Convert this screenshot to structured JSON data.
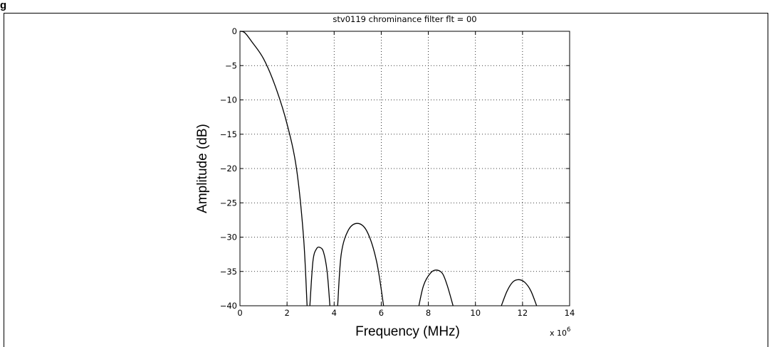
{
  "figure": {
    "label": "g"
  },
  "chart_data": {
    "type": "line",
    "title": "stv0119 chrominance filter flt = 00",
    "xlabel": "Frequency (MHz)",
    "ylabel": "Amplitude (dB)",
    "x_multiplier_prefix": "x 10",
    "x_multiplier_exponent": "6",
    "xlim": [
      0,
      14
    ],
    "ylim": [
      -40,
      0
    ],
    "xticks": [
      0,
      2,
      4,
      6,
      8,
      10,
      12,
      14
    ],
    "xtick_labels": [
      "0",
      "2",
      "4",
      "6",
      "8",
      "10",
      "12",
      "14"
    ],
    "yticks": [
      0,
      -5,
      -10,
      -15,
      -20,
      -25,
      -30,
      -35,
      -40
    ],
    "ytick_labels": [
      "0",
      "−5",
      "−10",
      "−15",
      "−20",
      "−25",
      "−30",
      "−35",
      "−40"
    ],
    "grid": true,
    "line_color": "#000000",
    "segments": [
      {
        "x": [
          0,
          0.2,
          0.5,
          1.0,
          1.5,
          2.0,
          2.4,
          2.7,
          2.85
        ],
        "y": [
          0,
          -0.2,
          -1.5,
          -4.0,
          -8.0,
          -13.5,
          -20.0,
          -30.0,
          -40.0
        ]
      },
      {
        "x": [
          2.97,
          3.1,
          3.25,
          3.4,
          3.55,
          3.7,
          3.82
        ],
        "y": [
          -40.0,
          -33.5,
          -31.7,
          -31.5,
          -32.2,
          -35.0,
          -40.0
        ]
      },
      {
        "x": [
          4.15,
          4.3,
          4.6,
          5.0,
          5.4,
          5.8,
          6.1
        ],
        "y": [
          -40.0,
          -32.5,
          -29.0,
          -28.0,
          -29.2,
          -33.5,
          -40.0
        ]
      },
      {
        "x": [
          7.6,
          7.8,
          8.1,
          8.35,
          8.6,
          8.8,
          9.05
        ],
        "y": [
          -40.0,
          -37.0,
          -35.2,
          -34.8,
          -35.3,
          -37.0,
          -40.0
        ]
      },
      {
        "x": [
          11.1,
          11.35,
          11.6,
          11.85,
          12.1,
          12.35,
          12.6
        ],
        "y": [
          -40.0,
          -37.8,
          -36.5,
          -36.2,
          -36.6,
          -37.8,
          -40.0
        ]
      }
    ]
  }
}
